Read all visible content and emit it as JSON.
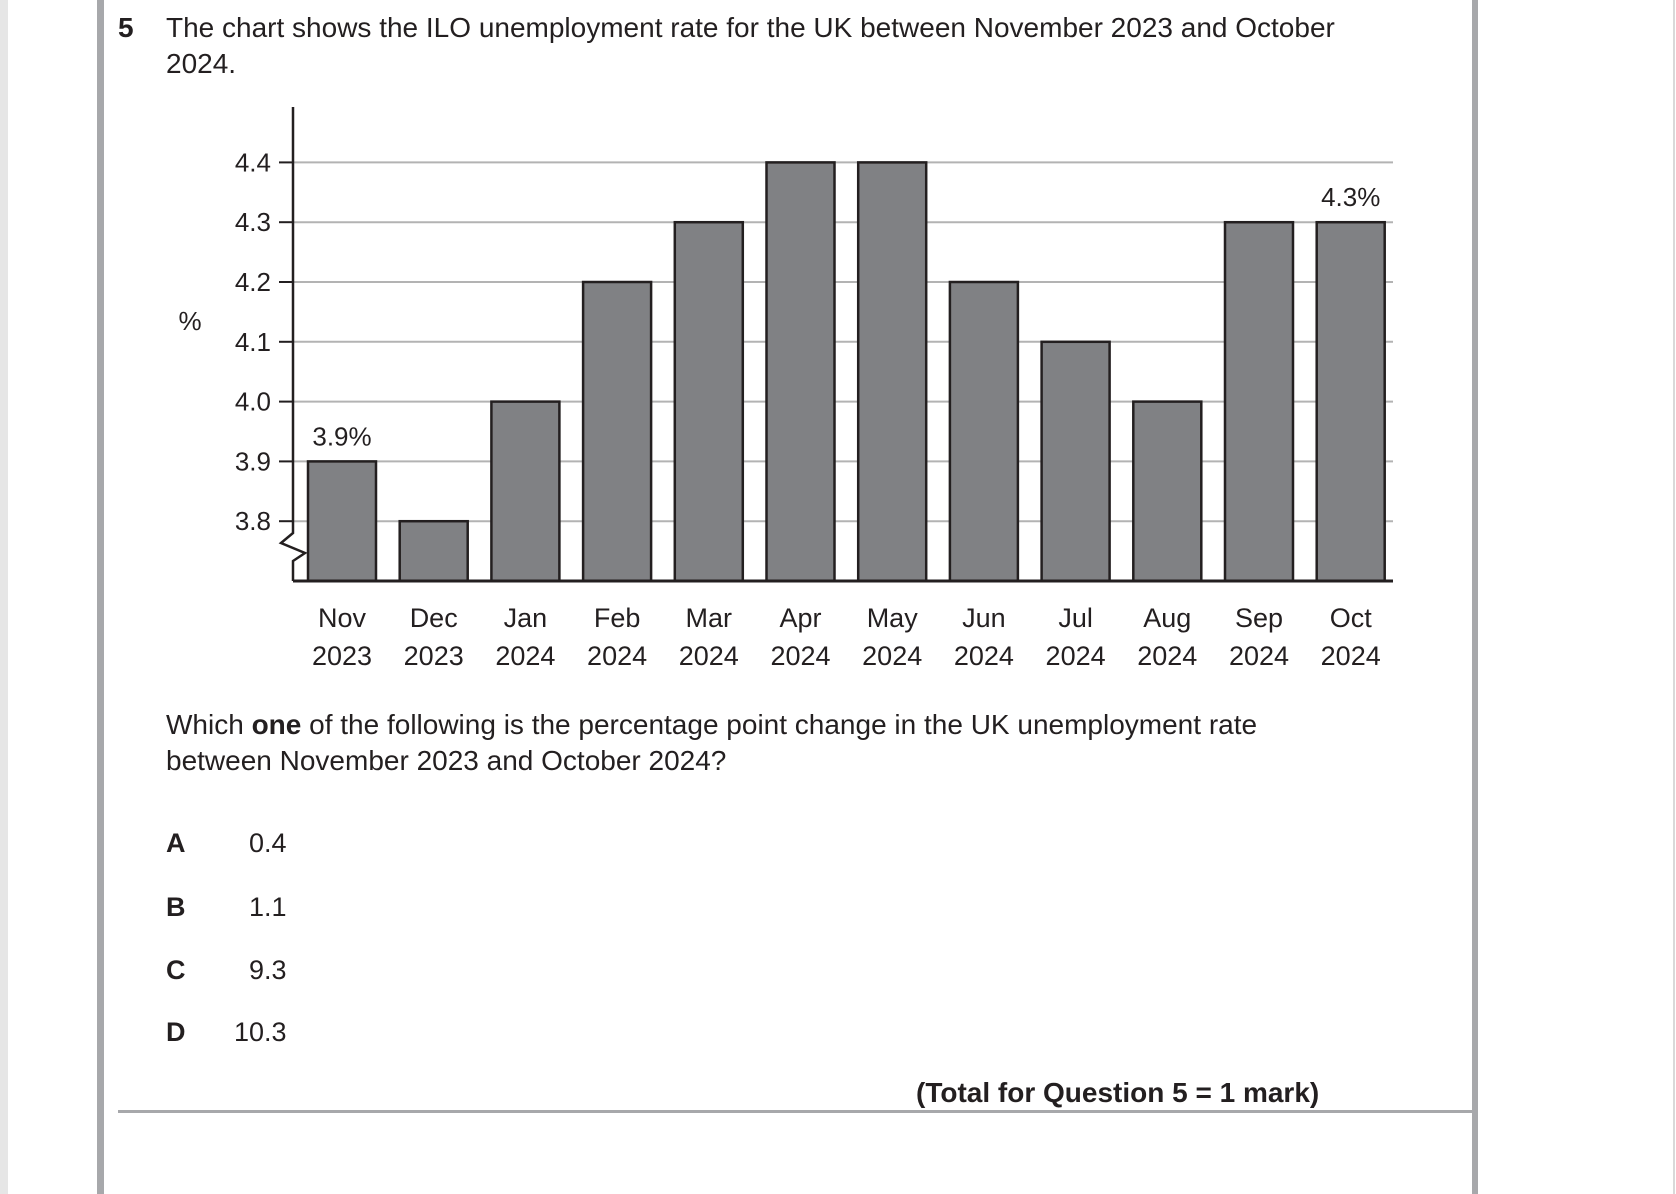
{
  "question": {
    "number": "5",
    "intro": "The chart shows the ILO unemployment rate for the UK between November 2023 and October 2024.",
    "prompt_before": "Which ",
    "prompt_bold": "one",
    "prompt_after": " of the following is the percentage point change in the UK unemployment rate between November 2023 and October 2024?",
    "options": [
      {
        "letter": "A",
        "value": "0.4"
      },
      {
        "letter": "B",
        "value": "1.1"
      },
      {
        "letter": "C",
        "value": "9.3"
      },
      {
        "letter": "D",
        "value": "10.3"
      }
    ],
    "total": "(Total for Question 5 = 1 mark)"
  },
  "chart_data": {
    "type": "bar",
    "title": "",
    "xlabel": "",
    "ylabel": "%",
    "ylim": [
      3.7,
      4.5
    ],
    "y_break": true,
    "grid": true,
    "yticks": [
      "4.4",
      "4.3",
      "4.2",
      "4.1",
      "4.0",
      "3.9",
      "3.8"
    ],
    "ytick_values": [
      4.4,
      4.3,
      4.2,
      4.1,
      4.0,
      3.9,
      3.8
    ],
    "categories": [
      [
        "Nov",
        "2023"
      ],
      [
        "Dec",
        "2023"
      ],
      [
        "Jan",
        "2024"
      ],
      [
        "Feb",
        "2024"
      ],
      [
        "Mar",
        "2024"
      ],
      [
        "Apr",
        "2024"
      ],
      [
        "May",
        "2024"
      ],
      [
        "Jun",
        "2024"
      ],
      [
        "Jul",
        "2024"
      ],
      [
        "Aug",
        "2024"
      ],
      [
        "Sep",
        "2024"
      ],
      [
        "Oct",
        "2024"
      ]
    ],
    "values": [
      3.9,
      3.8,
      4.0,
      4.2,
      4.3,
      4.4,
      4.4,
      4.2,
      4.1,
      4.0,
      4.3,
      4.3
    ],
    "annotations": [
      {
        "index": 0,
        "text": "3.9%"
      },
      {
        "index": 11,
        "text": "4.3%"
      }
    ],
    "colors": {
      "bar_fill": "#808184",
      "bar_stroke": "#231f20",
      "grid": "#b3b3b3",
      "axis": "#231f20"
    }
  }
}
